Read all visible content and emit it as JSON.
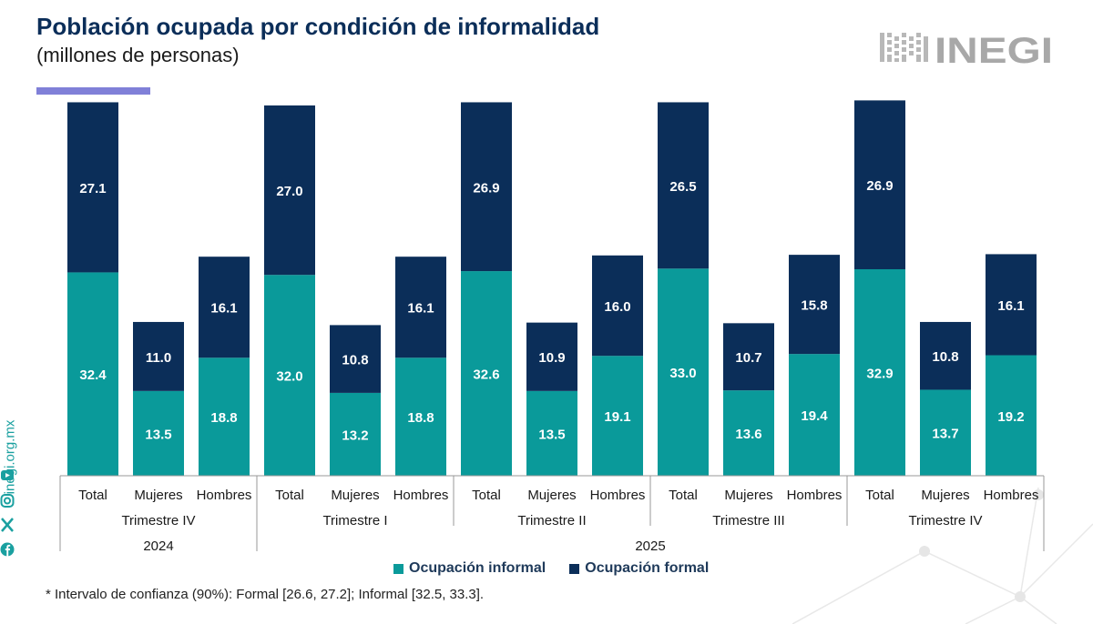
{
  "header": {
    "title": "Población ocupada por condición de informalidad",
    "subtitle": "(millones de personas)",
    "accent_color": "#8080d8"
  },
  "logo": {
    "text": "INEGI",
    "icon": "inegi-logo-icon"
  },
  "side": {
    "site": "inegi.org.mx",
    "icons": [
      "youtube-icon",
      "instagram-icon",
      "x-icon",
      "facebook-icon"
    ]
  },
  "chart_data": {
    "type": "bar",
    "stacked": true,
    "categories": [
      "Total",
      "Mujeres",
      "Hombres",
      "Total",
      "Mujeres",
      "Hombres",
      "Total",
      "Mujeres",
      "Hombres",
      "Total",
      "Mujeres",
      "Hombres",
      "Total",
      "Mujeres",
      "Hombres"
    ],
    "quarters": [
      {
        "label": "Trimestre IV",
        "span": 3
      },
      {
        "label": "Trimestre I",
        "span": 3
      },
      {
        "label": "Trimestre II",
        "span": 3
      },
      {
        "label": "Trimestre III",
        "span": 3
      },
      {
        "label": "Trimestre IV",
        "span": 3
      }
    ],
    "years": [
      {
        "label": "2024",
        "span": 3
      },
      {
        "label": "2025",
        "span": 12
      }
    ],
    "series": [
      {
        "name": "Ocupación informal",
        "color": "#0a9a9a",
        "values": [
          32.4,
          13.5,
          18.8,
          32.0,
          13.2,
          18.8,
          32.6,
          13.5,
          19.1,
          33.0,
          13.6,
          19.4,
          32.9,
          13.7,
          19.2
        ]
      },
      {
        "name": "Ocupación formal",
        "color": "#0b2e59",
        "values": [
          27.1,
          11.0,
          16.1,
          27.0,
          10.8,
          16.1,
          26.9,
          10.9,
          16.0,
          26.5,
          10.7,
          15.8,
          26.9,
          10.8,
          16.1
        ]
      }
    ],
    "ylim": [
      0,
      60
    ],
    "grid": false,
    "legend_position": "bottom"
  },
  "footnote": "* Intervalo de confianza (90%): Formal [26.6, 27.2]; Informal [32.5, 33.3]."
}
